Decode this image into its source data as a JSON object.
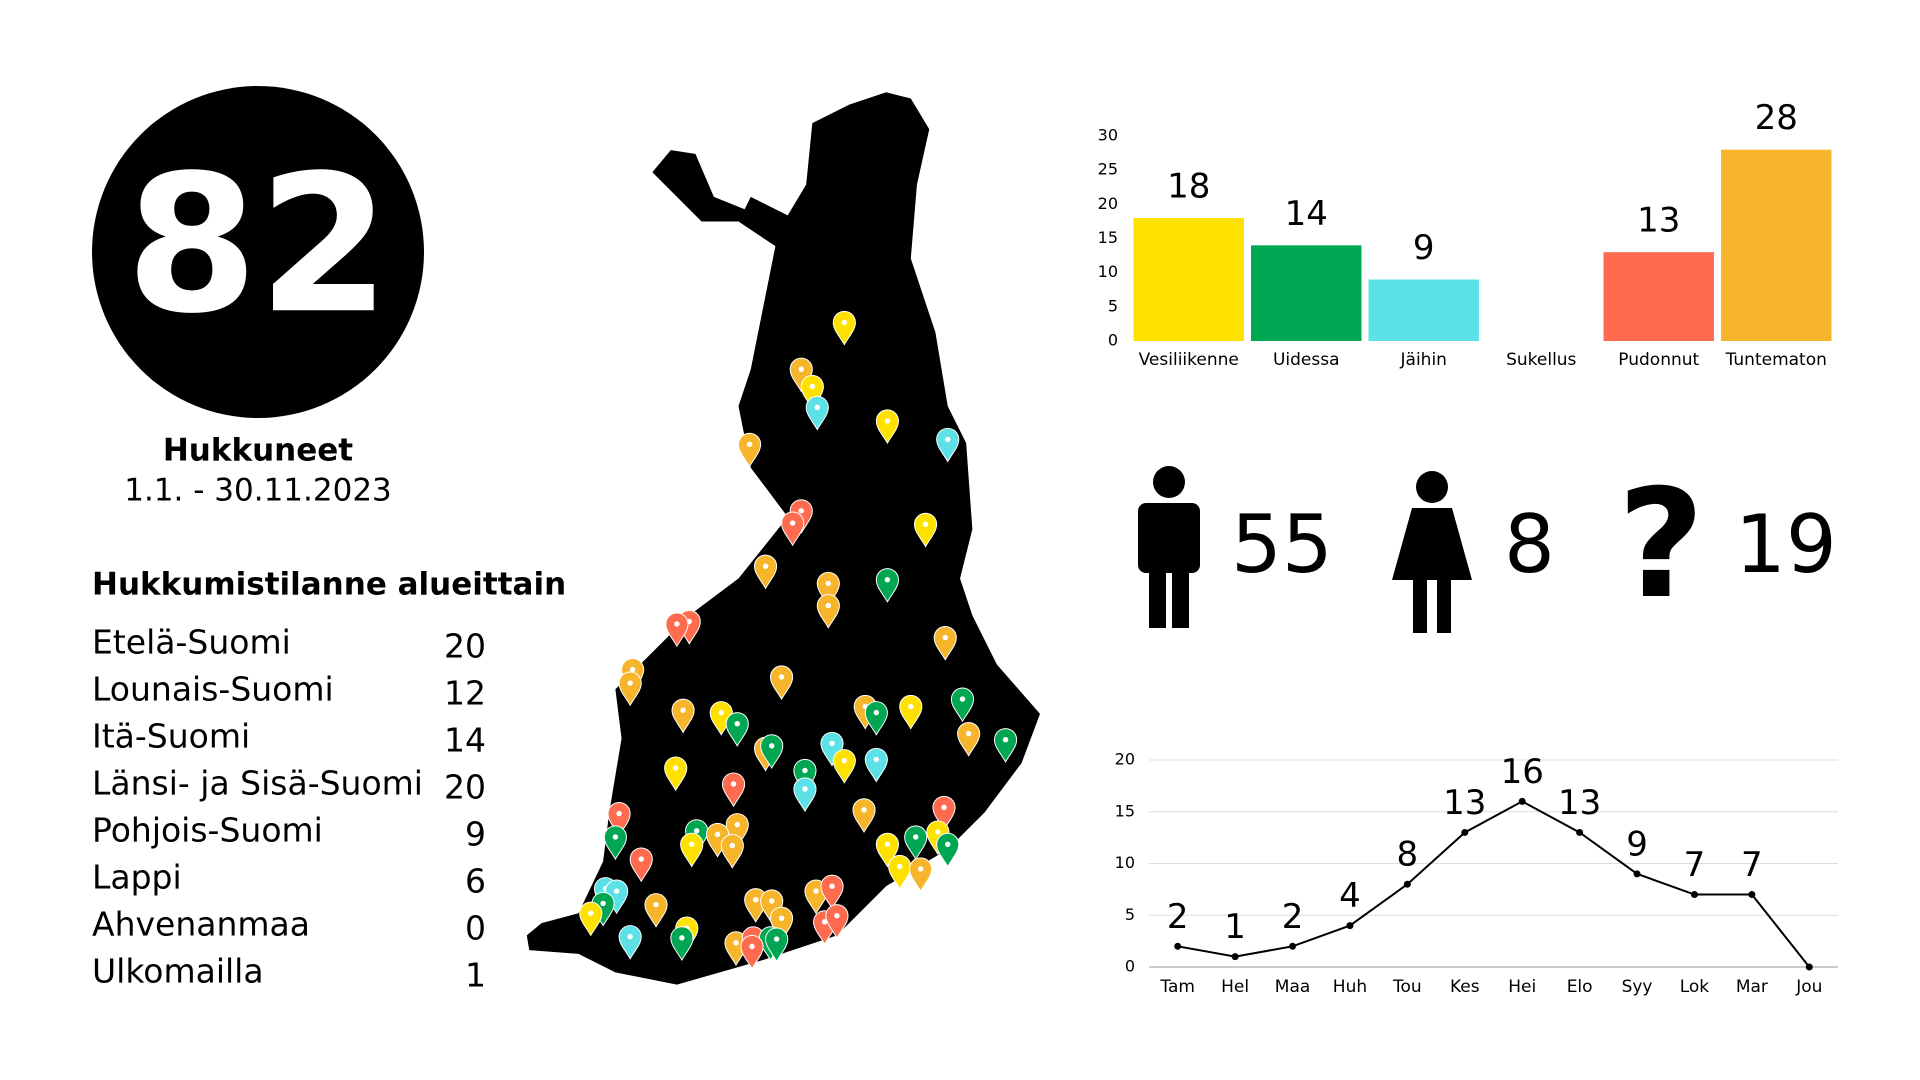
{
  "summary": {
    "total": "82",
    "title": "Hukkuneet",
    "period": "1.1. - 30.11.2023"
  },
  "regions": {
    "title": "Hukkumistilanne alueittain",
    "rows": [
      [
        "Etelä-Suomi",
        20
      ],
      [
        "Lounais-Suomi",
        12
      ],
      [
        "Itä-Suomi",
        14
      ],
      [
        "Länsi- ja Sisä-Suomi",
        20
      ],
      [
        "Pohjois-Suomi",
        9
      ],
      [
        "Lappi",
        6
      ],
      [
        "Ahvenanmaa",
        0
      ],
      [
        "Ulkomailla",
        1
      ]
    ]
  },
  "gender": [
    55,
    8,
    19
  ],
  "chart_data": [
    {
      "type": "bar",
      "categories": [
        "Vesiliikenne",
        "Uidessa",
        "Jäihin",
        "Sukellus",
        "Pudonnut",
        "Tuntematon"
      ],
      "values": [
        18,
        14,
        9,
        0,
        13,
        28
      ],
      "colors": [
        "#ffe100",
        "#00a651",
        "#5ce1e6",
        "#1d4ed8",
        "#ff6b4f",
        "#f7b52c"
      ],
      "ylim": [
        0,
        30
      ],
      "yticks": [
        0,
        5,
        10,
        15,
        20,
        25,
        30
      ],
      "grid": false
    },
    {
      "type": "line",
      "categories": [
        "Tam",
        "Hel",
        "Maa",
        "Huh",
        "Tou",
        "Kes",
        "Hei",
        "Elo",
        "Syy",
        "Lok",
        "Mar",
        "Jou"
      ],
      "values": [
        2,
        1,
        2,
        4,
        8,
        13,
        16,
        13,
        9,
        7,
        7,
        0
      ],
      "color": "#000000",
      "ylim": [
        0,
        20
      ],
      "yticks": [
        0,
        5,
        10,
        15,
        20
      ],
      "grid": true
    }
  ]
}
